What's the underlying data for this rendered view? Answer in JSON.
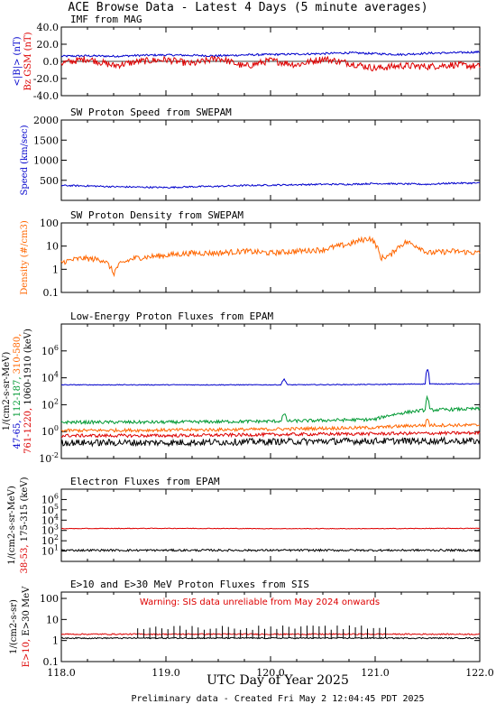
{
  "header": {
    "title": "ACE Browse Data - Latest 4 Days (5 minute averages)",
    "footer": "Preliminary data - Created Fri May  2 12:04:45 PDT 2025",
    "xlabel": "UTC Day of Year 2025",
    "x_ticks": [
      "118.0",
      "119.0",
      "120.0",
      "121.0",
      "122.0"
    ]
  },
  "colors": {
    "blue": "#0000cc",
    "red": "#dd0000",
    "orange": "#ff6600",
    "green": "#009933",
    "black": "#000000"
  },
  "chart_data": [
    {
      "type": "line",
      "title": "IMF from MAG",
      "ylabel_parts": [
        "<|B|> (nT)",
        "Bz GSM (nT)"
      ],
      "ylim": [
        -40,
        40
      ],
      "yticks": [
        "40.0",
        "20.0",
        "0.0",
        "-20.0",
        "-40.0"
      ],
      "xlim": [
        118.0,
        122.0
      ],
      "series": [
        {
          "name": "<|B|> (nT)",
          "color": "#0000cc",
          "x": [
            118.0,
            118.25,
            118.5,
            118.75,
            119.0,
            119.25,
            119.5,
            119.75,
            120.0,
            120.25,
            120.5,
            120.75,
            121.0,
            121.25,
            121.5,
            121.75,
            122.0
          ],
          "values": [
            6,
            6.5,
            6,
            7,
            7.5,
            7,
            6.5,
            7.5,
            8,
            8.5,
            9,
            10,
            9,
            8,
            9.5,
            10,
            11
          ]
        },
        {
          "name": "Bz GSM (nT)",
          "color": "#dd0000",
          "x": [
            118.0,
            118.25,
            118.5,
            118.75,
            119.0,
            119.25,
            119.5,
            119.75,
            120.0,
            120.25,
            120.5,
            120.75,
            121.0,
            121.25,
            121.5,
            121.75,
            122.0
          ],
          "values": [
            -2,
            3,
            -5,
            0,
            2,
            -3,
            4,
            -6,
            1,
            -4,
            3,
            -2,
            -8,
            -5,
            -6,
            -4,
            -6
          ]
        }
      ]
    },
    {
      "type": "line",
      "title": "SW Proton Speed from SWEPAM",
      "ylabel": "Speed (km/sec)",
      "ylim": [
        0,
        2000
      ],
      "yticks": [
        "2000",
        "1500",
        "1000",
        "500"
      ],
      "xlim": [
        118.0,
        122.0
      ],
      "series": [
        {
          "name": "Speed",
          "color": "#0000cc",
          "x": [
            118.0,
            118.25,
            118.5,
            118.75,
            119.0,
            119.25,
            119.5,
            119.75,
            120.0,
            120.25,
            120.5,
            120.75,
            121.0,
            121.25,
            121.5,
            121.75,
            122.0
          ],
          "values": [
            370,
            360,
            340,
            330,
            320,
            340,
            350,
            370,
            380,
            390,
            400,
            400,
            420,
            410,
            400,
            430,
            430
          ]
        }
      ]
    },
    {
      "type": "line",
      "title": "SW Proton Density from SWEPAM",
      "ylabel": "Density (#/cm3)",
      "ylim": [
        0.1,
        100
      ],
      "log": true,
      "yticks": [
        "100",
        "10",
        "1",
        "0.1"
      ],
      "xlim": [
        118.0,
        122.0
      ],
      "series": [
        {
          "name": "Density",
          "color": "#ff6600",
          "x": [
            118.0,
            118.2,
            118.4,
            118.5,
            118.55,
            118.7,
            119.0,
            119.25,
            119.5,
            119.75,
            120.0,
            120.25,
            120.5,
            120.75,
            120.95,
            121.05,
            121.15,
            121.3,
            121.5,
            121.75,
            122.0
          ],
          "values": [
            2,
            3,
            2.5,
            0.6,
            1.5,
            3,
            4,
            5,
            5,
            6,
            5,
            6,
            7,
            12,
            22,
            3,
            4,
            15,
            5,
            6,
            5
          ]
        }
      ]
    },
    {
      "type": "line",
      "title": "Low-Energy Proton Fluxes from EPAM",
      "ylabel_parts": [
        "1/(cm2-s-sr-MeV)",
        "47-65,",
        "112-187,",
        "310-580,",
        "761-1220,",
        "1060-1910 (keV)"
      ],
      "ylim": [
        0.01,
        100000000
      ],
      "log": true,
      "yticks": [
        "10^6",
        "10^4",
        "10^2",
        "10^0",
        "10^-2"
      ],
      "xlim": [
        118.0,
        122.0
      ],
      "series": [
        {
          "name": "47-65",
          "color": "#0000cc",
          "x": [
            118.0,
            119.0,
            120.1,
            120.13,
            120.16,
            121.0,
            121.48,
            121.5,
            121.52,
            122.0
          ],
          "values": [
            3000,
            3000,
            3000,
            8000,
            3000,
            3200,
            3500,
            50000,
            3500,
            3500
          ]
        },
        {
          "name": "112-187",
          "color": "#009933",
          "x": [
            118.0,
            119.0,
            120.1,
            120.13,
            120.16,
            121.0,
            121.2,
            121.48,
            121.5,
            121.52,
            122.0
          ],
          "values": [
            5,
            5,
            6,
            20,
            6,
            8,
            20,
            40,
            400,
            40,
            50
          ]
        },
        {
          "name": "310-580",
          "color": "#ff6600",
          "x": [
            118.0,
            119.0,
            120.0,
            121.0,
            121.48,
            121.5,
            121.52,
            122.0
          ],
          "values": [
            1.2,
            1.3,
            1.5,
            2,
            3,
            10,
            3,
            3
          ]
        },
        {
          "name": "761-1220",
          "color": "#dd0000",
          "x": [
            118.0,
            119.0,
            120.0,
            121.0,
            122.0
          ],
          "values": [
            0.5,
            0.5,
            0.6,
            0.7,
            0.8
          ]
        },
        {
          "name": "1060-1910",
          "color": "#000000",
          "x": [
            118.0,
            119.0,
            120.0,
            121.0,
            122.0
          ],
          "values": [
            0.15,
            0.15,
            0.18,
            0.2,
            0.2
          ]
        }
      ]
    },
    {
      "type": "line",
      "title": "Electron Fluxes from EPAM",
      "ylabel_parts": [
        "1/(cm2-s-sr-MeV)",
        "38-53,",
        "175-315 (keV)"
      ],
      "ylim": [
        1,
        10000000
      ],
      "log": true,
      "yticks": [
        "10^6",
        "10^5",
        "10^4",
        "10^3",
        "10^2",
        "10^1"
      ],
      "xlim": [
        118.0,
        122.0
      ],
      "series": [
        {
          "name": "38-53",
          "color": "#dd0000",
          "x": [
            118.0,
            119.0,
            120.0,
            121.0,
            122.0
          ],
          "values": [
            1500,
            1600,
            1500,
            1500,
            1600
          ]
        },
        {
          "name": "175-315",
          "color": "#000000",
          "x": [
            118.0,
            119.0,
            120.0,
            121.0,
            122.0
          ],
          "values": [
            12,
            12,
            12,
            12,
            12
          ]
        }
      ]
    },
    {
      "type": "line",
      "title": "E>10 and E>30 MeV Proton Fluxes from SIS",
      "ylabel_parts": [
        "1/(cm2-s-sr)",
        "E>10,",
        "E>30 MeV"
      ],
      "annotation": "Warning: SIS data unreliable from May 2024 onwards",
      "ylim": [
        0.1,
        200
      ],
      "log": true,
      "yticks": [
        "100",
        "10",
        "1",
        "0.1"
      ],
      "xlim": [
        118.0,
        122.0
      ],
      "series": [
        {
          "name": "E>10",
          "color": "#dd0000",
          "x": [
            118.0,
            119.0,
            120.0,
            121.0,
            122.0
          ],
          "values": [
            2,
            2,
            2,
            2,
            2
          ]
        },
        {
          "name": "E>30",
          "color": "#000000",
          "x": [
            118.0,
            119.0,
            120.0,
            121.0,
            122.0
          ],
          "values": [
            1.3,
            1.3,
            1.3,
            1.3,
            1.3
          ]
        },
        {
          "name": "E>30 spikes",
          "color": "#000000",
          "x": [
            118.73,
            121.1
          ],
          "values": [
            4,
            4
          ]
        }
      ]
    }
  ]
}
